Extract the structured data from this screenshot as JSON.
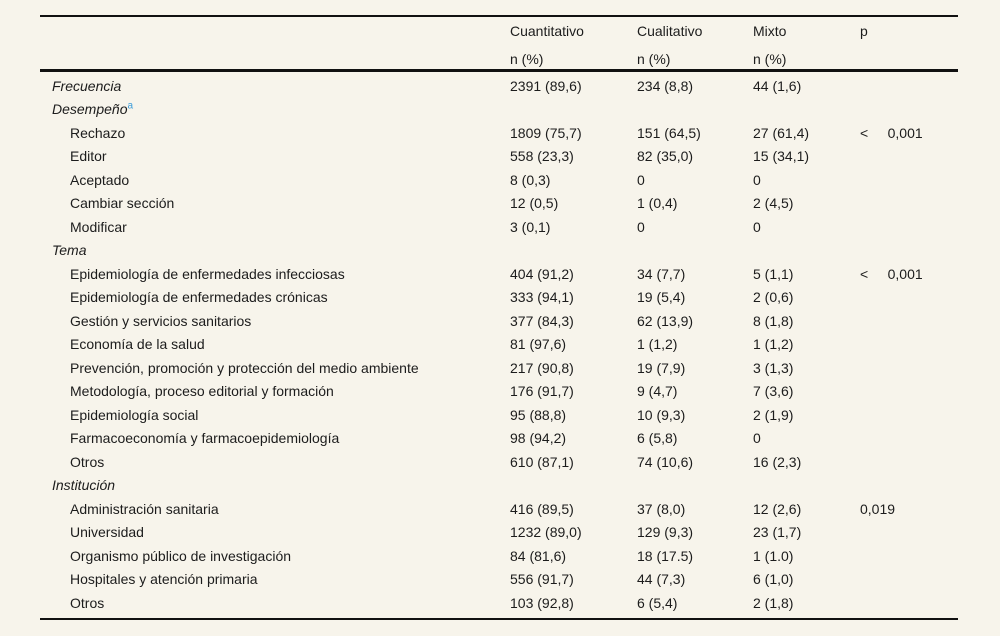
{
  "colors": {
    "background": "#f7f4eb",
    "text": "#1c1c1c",
    "rule": "#111111",
    "footnote_link": "#3b9cd9"
  },
  "table": {
    "header": {
      "empty": "",
      "columns": [
        {
          "label": "Cuantitativo",
          "sub": "n (%)"
        },
        {
          "label": "Cualitativo",
          "sub": "n (%)"
        },
        {
          "label": "Mixto",
          "sub": "n (%)"
        },
        {
          "label": "p",
          "sub": ""
        }
      ]
    },
    "footnote_marker": "a",
    "rows": [
      {
        "label": "Frecuencia",
        "style": "section",
        "sup": "",
        "cells": [
          "2391 (89,6)",
          "234 (8,8)",
          "44 (1,6)",
          ""
        ]
      },
      {
        "label": "Desempeño",
        "style": "section",
        "sup": "a",
        "cells": [
          "",
          "",
          "",
          ""
        ]
      },
      {
        "label": "Rechazo",
        "style": "item",
        "sup": "",
        "cells": [
          "1809 (75,7)",
          "151 (64,5)",
          "27 (61,4)",
          "<     0,001"
        ]
      },
      {
        "label": "Editor",
        "style": "item",
        "sup": "",
        "cells": [
          "558 (23,3)",
          "82 (35,0)",
          "15 (34,1)",
          ""
        ]
      },
      {
        "label": "Aceptado",
        "style": "item",
        "sup": "",
        "cells": [
          "8 (0,3)",
          "0",
          "0",
          ""
        ]
      },
      {
        "label": "Cambiar sección",
        "style": "item",
        "sup": "",
        "cells": [
          "12 (0,5)",
          "1 (0,4)",
          "2 (4,5)",
          ""
        ]
      },
      {
        "label": "Modificar",
        "style": "item",
        "sup": "",
        "cells": [
          "3 (0,1)",
          "0",
          "0",
          ""
        ]
      },
      {
        "label": "Tema",
        "style": "section",
        "sup": "",
        "cells": [
          "",
          "",
          "",
          ""
        ]
      },
      {
        "label": "Epidemiología de enfermedades infecciosas",
        "style": "item",
        "sup": "",
        "cells": [
          "404 (91,2)",
          "34 (7,7)",
          "5 (1,1)",
          "<     0,001"
        ]
      },
      {
        "label": "Epidemiología de enfermedades crónicas",
        "style": "item",
        "sup": "",
        "cells": [
          "333 (94,1)",
          "19 (5,4)",
          "2 (0,6)",
          ""
        ]
      },
      {
        "label": "Gestión y servicios sanitarios",
        "style": "item",
        "sup": "",
        "cells": [
          "377 (84,3)",
          "62 (13,9)",
          "8 (1,8)",
          ""
        ]
      },
      {
        "label": "Economía de la salud",
        "style": "item",
        "sup": "",
        "cells": [
          "81 (97,6)",
          "1 (1,2)",
          "1 (1,2)",
          ""
        ]
      },
      {
        "label": "Prevención, promoción y protección del medio ambiente",
        "style": "item",
        "sup": "",
        "cells": [
          "217 (90,8)",
          "19 (7,9)",
          "3 (1,3)",
          ""
        ]
      },
      {
        "label": "Metodología, proceso editorial y formación",
        "style": "item",
        "sup": "",
        "cells": [
          "176 (91,7)",
          "9 (4,7)",
          "7 (3,6)",
          ""
        ]
      },
      {
        "label": "Epidemiología social",
        "style": "item",
        "sup": "",
        "cells": [
          "95 (88,8)",
          "10 (9,3)",
          "2 (1,9)",
          ""
        ]
      },
      {
        "label": "Farmacoeconomía y farmacoepidemiología",
        "style": "item",
        "sup": "",
        "cells": [
          "98 (94,2)",
          "6 (5,8)",
          "0",
          ""
        ]
      },
      {
        "label": "Otros",
        "style": "item",
        "sup": "",
        "cells": [
          "610 (87,1)",
          "74 (10,6)",
          "16 (2,3)",
          ""
        ]
      },
      {
        "label": "Institución",
        "style": "section",
        "sup": "",
        "cells": [
          "",
          "",
          "",
          ""
        ]
      },
      {
        "label": "Administración sanitaria",
        "style": "item",
        "sup": "",
        "cells": [
          "416 (89,5)",
          "37 (8,0)",
          "12 (2,6)",
          "0,019"
        ]
      },
      {
        "label": "Universidad",
        "style": "item",
        "sup": "",
        "cells": [
          "1232 (89,0)",
          "129 (9,3)",
          "23 (1,7)",
          ""
        ]
      },
      {
        "label": "Organismo público de investigación",
        "style": "item",
        "sup": "",
        "cells": [
          "84 (81,6)",
          "18 (17.5)",
          "1 (1.0)",
          ""
        ]
      },
      {
        "label": "Hospitales y atención primaria",
        "style": "item",
        "sup": "",
        "cells": [
          "556 (91,7)",
          "44 (7,3)",
          "6 (1,0)",
          ""
        ]
      },
      {
        "label": "Otros",
        "style": "item",
        "sup": "",
        "cells": [
          "103 (92,8)",
          "6 (5,4)",
          "2 (1,8)",
          ""
        ]
      }
    ]
  }
}
